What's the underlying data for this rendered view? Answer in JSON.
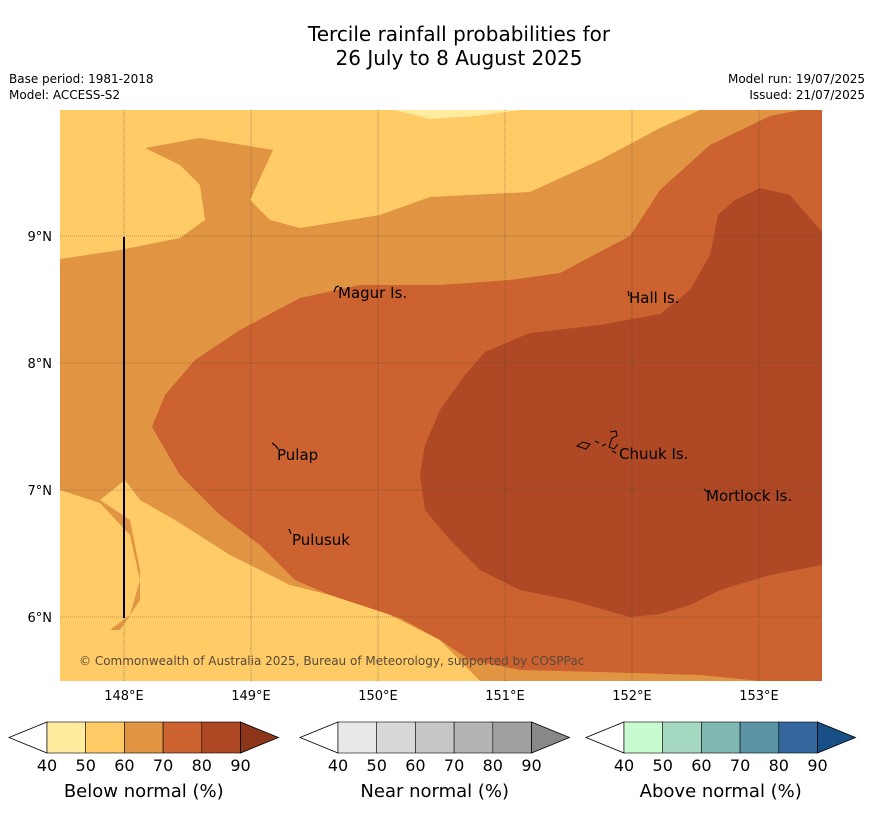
{
  "title_line1": "Tercile rainfall probabilities for",
  "title_line2": "26 July to 8 August 2025",
  "meta_left": [
    "Base period: 1981-2018",
    "Model: ACCESS-S2"
  ],
  "meta_right": [
    "Model run: 19/07/2025",
    "Issued: 21/07/2025"
  ],
  "lat_labels": [
    "9°N",
    "8°N",
    "7°N",
    "6°N"
  ],
  "lon_labels": [
    "148°E",
    "149°E",
    "150°E",
    "151°E",
    "152°E",
    "153°E"
  ],
  "places": [
    "Magur Is.",
    "Hall Is.",
    "Pulap",
    "Chuuk Is.",
    "Mortlock Is.",
    "Pulusuk"
  ],
  "copyright": "© Commonwealth of Australia 2025, Bureau of Meteorology, supported by COSPPac",
  "colorbars": [
    {
      "label": "Below normal (%)",
      "ticks": [
        "40",
        "50",
        "60",
        "70",
        "80",
        "90"
      ],
      "colors": [
        "#ffffff",
        "#ffeb9e",
        "#fecb66",
        "#e19442",
        "#cb622f",
        "#ae4825",
        "#8c3518"
      ]
    },
    {
      "label": "Near normal (%)",
      "ticks": [
        "40",
        "50",
        "60",
        "70",
        "80",
        "90"
      ],
      "colors": [
        "#ffffff",
        "#e8e8e8",
        "#d8d8d8",
        "#c7c7c7",
        "#b4b4b4",
        "#a0a0a0",
        "#888888"
      ]
    },
    {
      "label": "Above normal (%)",
      "ticks": [
        "40",
        "50",
        "60",
        "70",
        "80",
        "90"
      ],
      "colors": [
        "#ffffff",
        "#c8fbd0",
        "#a4d8c0",
        "#7fb7b3",
        "#5b94a5",
        "#33679e",
        "#184f87"
      ]
    }
  ]
}
